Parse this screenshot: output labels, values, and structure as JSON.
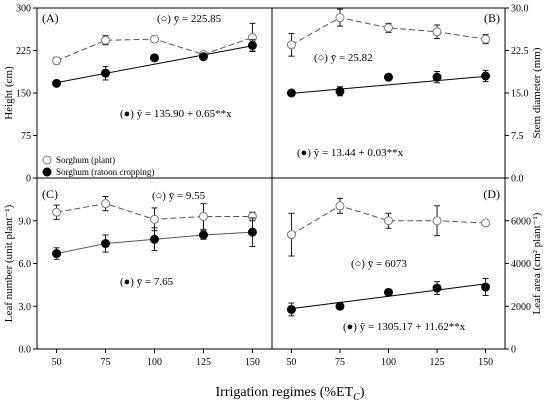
{
  "chart_data": [
    {
      "panel": "(A)",
      "type": "line",
      "x": [
        50,
        75,
        100,
        125,
        150
      ],
      "xlim": [
        40,
        160
      ],
      "ylabel": "Height (cm)",
      "ylim": [
        0,
        300
      ],
      "yticks": [
        0,
        75,
        150,
        225,
        300
      ],
      "ytick_labels": [
        "0",
        "75",
        "150",
        "225",
        "300"
      ],
      "series": [
        {
          "name": "Sorghum (plant)",
          "marker": "open",
          "values": [
            207,
            243,
            245,
            218,
            248
          ],
          "errors": [
            6,
            8,
            5,
            4,
            25
          ]
        },
        {
          "name": "Sorghum (ratoon cropping)",
          "marker": "filled",
          "values": [
            167,
            185,
            212,
            214,
            234
          ],
          "errors": [
            4,
            12,
            5,
            4,
            10
          ]
        }
      ],
      "fits": [
        {
          "series": "Sorghum (plant)",
          "style": "mean",
          "value": 225.85
        },
        {
          "series": "Sorghum (ratoon cropping)",
          "style": "linear",
          "intercept": 135.9,
          "slope": 0.65
        }
      ],
      "annotations": [
        "(○) ȳ = 225.85",
        "(●) ŷ = 135.90 + 0.65**x"
      ],
      "legend": {
        "placement": "lower-left",
        "entries": [
          "Sorghum (plant)",
          "Sorghum (ratoon cropping)"
        ]
      }
    },
    {
      "panel": "(B)",
      "type": "line",
      "x": [
        50,
        75,
        100,
        125,
        150
      ],
      "xlim": [
        40,
        160
      ],
      "ylabel": "Stem diameter (mm)",
      "ylim": [
        0,
        30
      ],
      "yticks": [
        0,
        7.5,
        15,
        22.5,
        30
      ],
      "ytick_labels": [
        "0.0",
        "7.5",
        "15.0",
        "22.5",
        "30.0"
      ],
      "series": [
        {
          "name": "Sorghum (plant)",
          "marker": "open",
          "values": [
            23.5,
            28.3,
            26.5,
            25.8,
            24.5
          ],
          "errors": [
            2.0,
            1.5,
            0.8,
            1.2,
            0.8
          ]
        },
        {
          "name": "Sorghum (ratoon cropping)",
          "marker": "filled",
          "values": [
            15.0,
            15.3,
            17.8,
            17.8,
            18.0
          ],
          "errors": [
            0.3,
            0.8,
            0.5,
            1.0,
            1.0
          ]
        }
      ],
      "fits": [
        {
          "series": "Sorghum (plant)",
          "style": "mean",
          "value": 25.82
        },
        {
          "series": "Sorghum (ratoon cropping)",
          "style": "linear",
          "intercept": 13.44,
          "slope": 0.03
        }
      ],
      "annotations": [
        "(○) ȳ = 25.82",
        "(●) ŷ = 13.44 + 0.03**x"
      ]
    },
    {
      "panel": "(C)",
      "type": "line",
      "x": [
        50,
        75,
        100,
        125,
        150
      ],
      "xlim": [
        40,
        160
      ],
      "xtick_labels": [
        "50",
        "75",
        "100",
        "125",
        "150"
      ],
      "ylabel": "Leaf number (unit plant⁻¹)",
      "ylim": [
        0,
        12
      ],
      "yticks": [
        0,
        3,
        6,
        9
      ],
      "ytick_labels": [
        "0.0",
        "3.0",
        "6.0",
        "9.0"
      ],
      "series": [
        {
          "name": "Sorghum (plant)",
          "marker": "open",
          "values": [
            9.6,
            10.2,
            9.1,
            9.3,
            9.3
          ],
          "errors": [
            0.5,
            0.5,
            0.8,
            0.9,
            0.3
          ]
        },
        {
          "name": "Sorghum (ratoon cropping)",
          "marker": "filled",
          "values": [
            6.7,
            7.4,
            7.7,
            8.0,
            8.2
          ],
          "errors": [
            0.4,
            0.6,
            0.8,
            0.3,
            1.0
          ]
        }
      ],
      "fits": [
        {
          "series": "Sorghum (plant)",
          "style": "mean",
          "value": 9.55
        },
        {
          "series": "Sorghum (ratoon cropping)",
          "style": "mean",
          "value": 7.65
        }
      ],
      "annotations": [
        "(○) ȳ = 9.55",
        "(●) ȳ = 7.65"
      ]
    },
    {
      "panel": "(D)",
      "type": "line",
      "x": [
        50,
        75,
        100,
        125,
        150
      ],
      "xlim": [
        40,
        160
      ],
      "xtick_labels": [
        "50",
        "75",
        "100",
        "125",
        "150"
      ],
      "ylabel": "Leaf area (cm² plant⁻¹)",
      "ylim": [
        0,
        8000
      ],
      "yticks": [
        0,
        2000,
        4000,
        6000
      ],
      "ytick_labels": [
        "0",
        "2000",
        "4000",
        "6000"
      ],
      "series": [
        {
          "name": "Sorghum (plant)",
          "marker": "open",
          "values": [
            5350,
            6700,
            6000,
            6000,
            5900
          ],
          "errors": [
            1000,
            350,
            350,
            700,
            100
          ]
        },
        {
          "name": "Sorghum (ratoon cropping)",
          "marker": "filled",
          "values": [
            1850,
            2000,
            2650,
            2850,
            2900
          ],
          "errors": [
            300,
            150,
            100,
            300,
            400
          ]
        }
      ],
      "fits": [
        {
          "series": "Sorghum (plant)",
          "style": "mean",
          "value": 6073
        },
        {
          "series": "Sorghum (ratoon cropping)",
          "style": "linear",
          "intercept": 1305.17,
          "slope": 11.62
        }
      ],
      "annotations": [
        "(○) ȳ = 6073",
        "(●) ŷ = 1305.17 + 11.62**x"
      ]
    }
  ],
  "xlabel": "Irrigation regimes (%ET",
  "xlabel_subscript": "C",
  "xlabel_close": ")",
  "legend": {
    "open_label": "Sorghum (plant)",
    "filled_label": "Sorghum (ratoon cropping)"
  }
}
